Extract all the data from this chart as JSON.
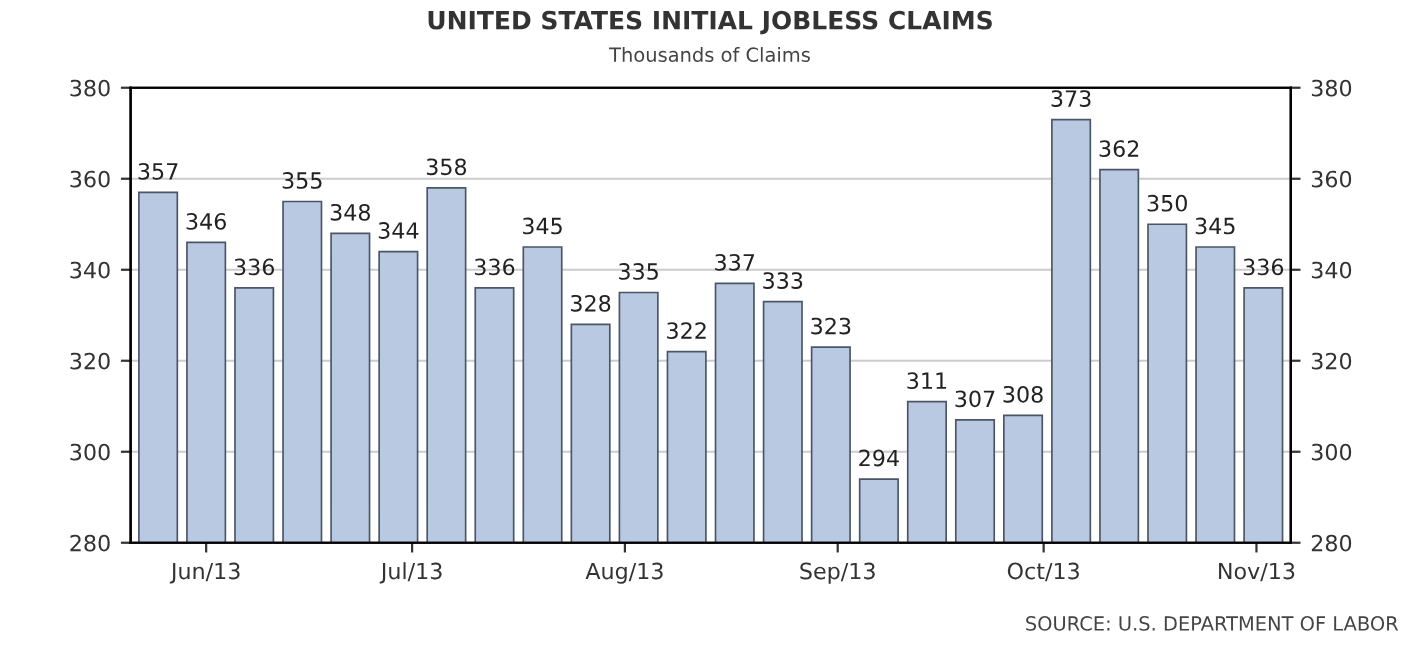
{
  "chart_data": {
    "type": "bar",
    "title": "UNITED STATES INITIAL JOBLESS CLAIMS",
    "subtitle": "Thousands of Claims",
    "x": [
      "2013-05-25",
      "2013-06-01",
      "2013-06-08",
      "2013-06-15",
      "2013-06-22",
      "2013-06-29",
      "2013-07-06",
      "2013-07-13",
      "2013-07-20",
      "2013-07-27",
      "2013-08-03",
      "2013-08-10",
      "2013-08-17",
      "2013-08-24",
      "2013-08-31",
      "2013-09-07",
      "2013-09-14",
      "2013-09-21",
      "2013-09-28",
      "2013-10-05",
      "2013-10-12",
      "2013-10-19",
      "2013-10-26",
      "2013-11-02"
    ],
    "values": [
      357,
      346,
      336,
      355,
      348,
      344,
      358,
      336,
      345,
      328,
      335,
      322,
      337,
      333,
      323,
      294,
      311,
      307,
      308,
      373,
      362,
      350,
      345,
      336
    ],
    "color": "#b9c9e1",
    "data_labels": true,
    "xlim": [
      "2013-05-21",
      "2013-11-06"
    ],
    "xticks": [
      {
        "value": "2013-06-01",
        "label": "Jun/13"
      },
      {
        "value": "2013-07-01",
        "label": "Jul/13"
      },
      {
        "value": "2013-08-01",
        "label": "Aug/13"
      },
      {
        "value": "2013-09-01",
        "label": "Sep/13"
      },
      {
        "value": "2013-10-01",
        "label": "Oct/13"
      },
      {
        "value": "2013-11-01",
        "label": "Nov/13"
      }
    ],
    "ylim": [
      280,
      380
    ],
    "yticks": [
      280,
      300,
      320,
      340,
      360,
      380
    ],
    "y2lim": [
      280,
      380
    ],
    "y2ticks": [
      280,
      300,
      320,
      340,
      360,
      380
    ],
    "grid": "y",
    "legend": false,
    "annotations": [
      "SOURCE: U.S. DEPARTMENT OF LABOR"
    ]
  }
}
